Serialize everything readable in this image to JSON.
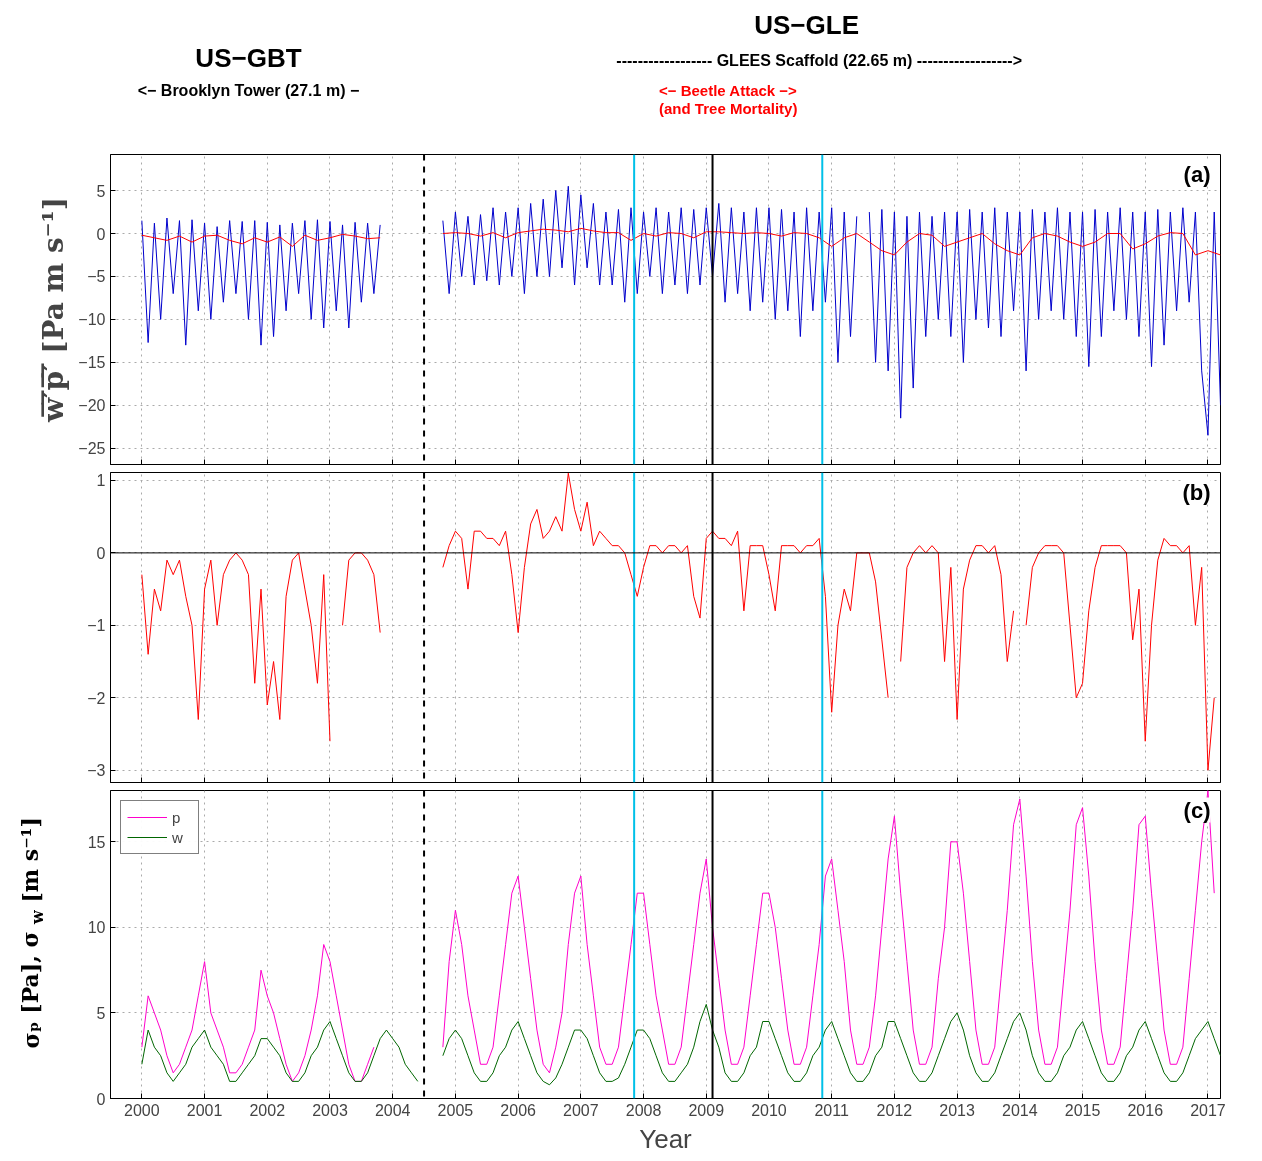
{
  "chart_data": [
    {
      "type": "line",
      "ylabel": "w̅′̅p̅′̅ [Pa m s⁻¹]",
      "xlim": [
        1999.5,
        2017.2
      ],
      "ylim": [
        -26.9,
        9.2
      ],
      "xticks": [
        2000,
        2001,
        2002,
        2003,
        2004,
        2005,
        2006,
        2007,
        2008,
        2009,
        2010,
        2011,
        2012,
        2013,
        2014,
        2015,
        2016,
        2017
      ],
      "yticks": [
        -25,
        -20,
        -15,
        -10,
        -5,
        0,
        5
      ],
      "tick_labels": "y",
      "grid": true,
      "marker": "none",
      "annotations": [
        "US−GBT",
        "<− Brooklyn Tower (27.1 m) −",
        "US−GLE",
        "------------------ GLEES Scaffold (22.65 m) ------------------>",
        "<− Beetle Attack −>",
        "(and Tree Mortality)",
        "(a)"
      ],
      "ref_lines": [
        {
          "axis": "x",
          "value": 2004.5,
          "color": "#000000",
          "line_style": "dashed"
        },
        {
          "axis": "x",
          "value": 2007.85,
          "color": "#00c0e8",
          "line_style": "solid"
        },
        {
          "axis": "x",
          "value": 2009.1,
          "color": "#000000",
          "line_style": "solid"
        },
        {
          "axis": "x",
          "value": 2010.85,
          "color": "#00c0e8",
          "line_style": "solid"
        }
      ],
      "series": [
        {
          "color": "#0000cc",
          "x": [
            2000.0,
            2000.1,
            2000.2,
            2000.3,
            2000.4,
            2000.5,
            2000.6,
            2000.7,
            2000.8,
            2000.9,
            2001.0,
            2001.1,
            2001.2,
            2001.3,
            2001.4,
            2001.5,
            2001.6,
            2001.7,
            2001.8,
            2001.9,
            2002.0,
            2002.1,
            2002.2,
            2002.3,
            2002.4,
            2002.5,
            2002.6,
            2002.7,
            2002.8,
            2002.9,
            2003.0,
            2003.1,
            2003.2,
            2003.3,
            2003.4,
            2003.5,
            2003.6,
            2003.7,
            2003.8,
            2003.9,
            2004.0,
            2004.1,
            2004.2,
            2004.3,
            2004.4,
            2004.5,
            2004.6,
            2004.7,
            2004.8,
            2004.9,
            2005.0,
            2005.1,
            2005.2,
            2005.3,
            2005.4,
            2005.5,
            2005.6,
            2005.7,
            2005.8,
            2005.9,
            2006.0,
            2006.1,
            2006.2,
            2006.3,
            2006.4,
            2006.5,
            2006.6,
            2006.7,
            2006.8,
            2006.9,
            2007.0,
            2007.1,
            2007.2,
            2007.3,
            2007.4,
            2007.5,
            2007.6,
            2007.7,
            2007.8,
            2007.9,
            2008.0,
            2008.1,
            2008.2,
            2008.3,
            2008.4,
            2008.5,
            2008.6,
            2008.7,
            2008.8,
            2008.9,
            2009.0,
            2009.1,
            2009.2,
            2009.3,
            2009.4,
            2009.5,
            2009.6,
            2009.7,
            2009.8,
            2009.9,
            2010.0,
            2010.1,
            2010.2,
            2010.3,
            2010.4,
            2010.5,
            2010.6,
            2010.7,
            2010.8,
            2010.9,
            2011.0,
            2011.1,
            2011.2,
            2011.3,
            2011.4,
            2011.5,
            2011.6,
            2011.7,
            2011.8,
            2011.9,
            2012.0,
            2012.1,
            2012.2,
            2012.3,
            2012.4,
            2012.5,
            2012.6,
            2012.7,
            2012.8,
            2012.9,
            2013.0,
            2013.1,
            2013.2,
            2013.3,
            2013.4,
            2013.5,
            2013.6,
            2013.7,
            2013.8,
            2013.9,
            2014.0,
            2014.1,
            2014.2,
            2014.3,
            2014.4,
            2014.5,
            2014.6,
            2014.7,
            2014.8,
            2014.9,
            2015.0,
            2015.1,
            2015.2,
            2015.3,
            2015.4,
            2015.5,
            2015.6,
            2015.7,
            2015.8,
            2015.9,
            2016.0,
            2016.1,
            2016.2,
            2016.3,
            2016.4,
            2016.5,
            2016.6,
            2016.7,
            2016.8,
            2016.9,
            2017.0,
            2017.1,
            2017.2
          ],
          "values": [
            1.5,
            -12.7,
            1.2,
            -10,
            1.8,
            -7,
            1.5,
            -13,
            1.6,
            -9,
            1.2,
            -10,
            0.8,
            -8,
            1.5,
            -7,
            1.4,
            -10,
            1.5,
            -13,
            1.3,
            -12,
            1.0,
            -9,
            1.2,
            -7,
            1.5,
            -10,
            1.6,
            -11,
            1.4,
            -9,
            1.0,
            -11,
            1.3,
            -8,
            1.2,
            -7,
            1.0,
            null,
            null,
            null,
            null,
            null,
            null,
            null,
            null,
            null,
            1.5,
            -7,
            2.5,
            -5,
            2.0,
            -6,
            2.2,
            -5.5,
            3.0,
            -6,
            2.5,
            -5,
            3.0,
            -7,
            3.5,
            -5,
            4.0,
            -5,
            5.0,
            -4,
            5.5,
            -6,
            4.5,
            -4,
            3.5,
            -6,
            2.5,
            -6,
            2.8,
            -8,
            3.0,
            -7,
            2.5,
            -5,
            3.0,
            -7,
            2.5,
            -6,
            3.0,
            -7,
            2.8,
            -6,
            3.0,
            -5,
            3.5,
            -8,
            3.0,
            -7,
            2.5,
            -9,
            3.0,
            -8,
            3.0,
            -10,
            2.8,
            -9,
            2.5,
            -12,
            3.0,
            -9,
            2.5,
            -8,
            3.0,
            -15,
            2.5,
            -12,
            2.0,
            null,
            2.5,
            -15,
            2.8,
            -16,
            2.5,
            -21.5,
            2.0,
            -18,
            2.5,
            -12,
            2.0,
            -10,
            2.5,
            -12,
            2.5,
            -15,
            2.8,
            -10,
            2.5,
            -11,
            3.0,
            -12,
            2.5,
            -9,
            2.5,
            -16,
            2.8,
            -10,
            2.5,
            -9,
            3.0,
            -10,
            2.5,
            -12,
            2.5,
            -15.5,
            2.8,
            -12,
            2.5,
            -9,
            3.0,
            -10,
            2.5,
            -12,
            2.5,
            -15.5,
            2.8,
            -13,
            2.5,
            -9,
            3.0,
            -8,
            2.5,
            -16,
            -23.5,
            2.5,
            -20
          ]
        },
        {
          "color": "#ff0000",
          "x": [
            2000.0,
            2000.2,
            2000.4,
            2000.6,
            2000.8,
            2001.0,
            2001.2,
            2001.4,
            2001.6,
            2001.8,
            2002.0,
            2002.2,
            2002.4,
            2002.6,
            2002.8,
            2003.0,
            2003.2,
            2003.4,
            2003.6,
            2003.8,
            2004.0,
            2004.2,
            2004.4,
            2004.6,
            2004.8,
            2005.0,
            2005.2,
            2005.4,
            2005.6,
            2005.8,
            2006.0,
            2006.2,
            2006.4,
            2006.6,
            2006.8,
            2007.0,
            2007.2,
            2007.4,
            2007.6,
            2007.8,
            2008.0,
            2008.2,
            2008.4,
            2008.6,
            2008.8,
            2009.0,
            2009.2,
            2009.4,
            2009.6,
            2009.8,
            2010.0,
            2010.2,
            2010.4,
            2010.6,
            2010.8,
            2011.0,
            2011.2,
            2011.4,
            2011.6,
            2011.8,
            2012.0,
            2012.2,
            2012.4,
            2012.6,
            2012.8,
            2013.0,
            2013.2,
            2013.4,
            2013.6,
            2013.8,
            2014.0,
            2014.2,
            2014.4,
            2014.6,
            2014.8,
            2015.0,
            2015.2,
            2015.4,
            2015.6,
            2015.8,
            2016.0,
            2016.2,
            2016.4,
            2016.6,
            2016.8,
            2017.0,
            2017.2
          ],
          "values": [
            -0.2,
            -0.5,
            -0.8,
            -0.3,
            -1.0,
            -0.3,
            -0.2,
            -0.8,
            -1.2,
            -0.5,
            -1.0,
            -0.4,
            -1.5,
            -0.2,
            -0.8,
            -0.5,
            -0.1,
            -0.3,
            -0.6,
            -0.5,
            null,
            null,
            null,
            null,
            0.0,
            0.1,
            0.0,
            -0.3,
            0.1,
            -0.5,
            0.1,
            0.3,
            0.5,
            0.4,
            0.2,
            0.6,
            0.3,
            0.1,
            0.1,
            -0.8,
            0.0,
            -0.3,
            0.1,
            0.0,
            -0.5,
            0.2,
            0.2,
            0.1,
            0.0,
            0.1,
            0.0,
            -0.3,
            0.1,
            0.0,
            -0.5,
            -1.5,
            -0.5,
            0.0,
            -1.0,
            -2.0,
            -2.5,
            -1.0,
            0.0,
            -0.2,
            -1.5,
            -1.0,
            -0.5,
            0.0,
            -1.2,
            -2.0,
            -2.5,
            -0.5,
            0.0,
            -0.3,
            -1.0,
            -1.5,
            -1.0,
            0.0,
            0.0,
            -1.8,
            -1.2,
            -0.3,
            0.1,
            0.0,
            -2.5,
            -2.0,
            -2.5
          ]
        }
      ]
    },
    {
      "type": "line",
      "xlim": [
        1999.5,
        2017.2
      ],
      "ylim": [
        -3.17,
        1.11
      ],
      "xticks": [
        2000,
        2001,
        2002,
        2003,
        2004,
        2005,
        2006,
        2007,
        2008,
        2009,
        2010,
        2011,
        2012,
        2013,
        2014,
        2015,
        2016,
        2017
      ],
      "yticks": [
        -3,
        -2,
        -1,
        0,
        1
      ],
      "tick_labels": "y",
      "grid": true,
      "marker": "none",
      "annotations": [
        "(b)"
      ],
      "ref_lines": [
        {
          "axis": "x",
          "value": 2004.5,
          "color": "#000000",
          "line_style": "dashed"
        },
        {
          "axis": "x",
          "value": 2007.85,
          "color": "#00c0e8",
          "line_style": "solid"
        },
        {
          "axis": "x",
          "value": 2009.1,
          "color": "#000000",
          "line_style": "solid"
        },
        {
          "axis": "x",
          "value": 2010.85,
          "color": "#00c0e8",
          "line_style": "solid"
        },
        {
          "axis": "y",
          "value": 0,
          "color": "#000000",
          "line_style": "solid"
        }
      ],
      "x": [
        2000.0,
        2000.1,
        2000.2,
        2000.3,
        2000.4,
        2000.5,
        2000.6,
        2000.7,
        2000.8,
        2000.9,
        2001.0,
        2001.1,
        2001.2,
        2001.3,
        2001.4,
        2001.5,
        2001.6,
        2001.7,
        2001.8,
        2001.9,
        2002.0,
        2002.1,
        2002.2,
        2002.3,
        2002.4,
        2002.5,
        2002.6,
        2002.7,
        2002.8,
        2002.9,
        2003.0,
        2003.1,
        2003.2,
        2003.3,
        2003.4,
        2003.5,
        2003.6,
        2003.7,
        2003.8,
        2003.9,
        2004.0,
        2004.1,
        2004.2,
        2004.3,
        2004.4,
        2004.5,
        2004.6,
        2004.7,
        2004.8,
        2004.9,
        2005.0,
        2005.1,
        2005.2,
        2005.3,
        2005.4,
        2005.5,
        2005.6,
        2005.7,
        2005.8,
        2005.9,
        2006.0,
        2006.1,
        2006.2,
        2006.3,
        2006.4,
        2006.5,
        2006.6,
        2006.7,
        2006.8,
        2006.9,
        2007.0,
        2007.1,
        2007.2,
        2007.3,
        2007.4,
        2007.5,
        2007.6,
        2007.7,
        2007.8,
        2007.9,
        2008.0,
        2008.1,
        2008.2,
        2008.3,
        2008.4,
        2008.5,
        2008.6,
        2008.7,
        2008.8,
        2008.9,
        2009.0,
        2009.1,
        2009.2,
        2009.3,
        2009.4,
        2009.5,
        2009.6,
        2009.7,
        2009.8,
        2009.9,
        2010.0,
        2010.1,
        2010.2,
        2010.3,
        2010.4,
        2010.5,
        2010.6,
        2010.7,
        2010.8,
        2010.9,
        2011.0,
        2011.1,
        2011.2,
        2011.3,
        2011.4,
        2011.5,
        2011.6,
        2011.7,
        2011.8,
        2011.9,
        2012.0,
        2012.1,
        2012.2,
        2012.3,
        2012.4,
        2012.5,
        2012.6,
        2012.7,
        2012.8,
        2012.9,
        2013.0,
        2013.1,
        2013.2,
        2013.3,
        2013.4,
        2013.5,
        2013.6,
        2013.7,
        2013.8,
        2013.9,
        2014.0,
        2014.1,
        2014.2,
        2014.3,
        2014.4,
        2014.5,
        2014.6,
        2014.7,
        2014.8,
        2014.9,
        2015.0,
        2015.1,
        2015.2,
        2015.3,
        2015.4,
        2015.5,
        2015.6,
        2015.7,
        2015.8,
        2015.9,
        2016.0,
        2016.1,
        2016.2,
        2016.3,
        2016.4,
        2016.5,
        2016.6,
        2016.7,
        2016.8,
        2016.9,
        2017.0,
        2017.1
      ],
      "series": [
        {
          "color": "#ff0000",
          "values": [
            -0.3,
            -1.4,
            -0.5,
            -0.8,
            -0.1,
            -0.3,
            -0.1,
            -0.6,
            -1.0,
            -2.3,
            -0.5,
            -0.1,
            -1.0,
            -0.3,
            -0.1,
            0.0,
            -0.1,
            -0.3,
            -1.8,
            -0.5,
            -2.1,
            -1.5,
            -2.3,
            -0.6,
            -0.1,
            0.0,
            -0.5,
            -1.0,
            -1.8,
            -0.3,
            -2.6,
            null,
            -1.0,
            -0.1,
            0.0,
            0.0,
            -0.1,
            -0.3,
            -1.1,
            null,
            null,
            null,
            null,
            null,
            null,
            null,
            null,
            null,
            -0.2,
            0.1,
            0.3,
            0.2,
            -0.5,
            0.3,
            0.3,
            0.2,
            0.2,
            0.1,
            0.3,
            -0.3,
            -1.1,
            -0.2,
            0.4,
            0.6,
            0.2,
            0.3,
            0.5,
            0.3,
            1.1,
            0.6,
            0.3,
            0.7,
            0.1,
            0.3,
            0.2,
            0.1,
            0.1,
            0.0,
            -0.3,
            -0.6,
            -0.2,
            0.1,
            0.1,
            0.0,
            0.1,
            0.1,
            0.0,
            0.1,
            -0.6,
            -0.9,
            0.2,
            0.3,
            0.2,
            0.2,
            0.1,
            0.3,
            -0.8,
            0.1,
            0.1,
            0.1,
            -0.3,
            -0.8,
            0.1,
            0.1,
            0.1,
            0.0,
            0.1,
            0.1,
            0.2,
            -0.6,
            -2.2,
            -1.0,
            -0.5,
            -0.8,
            0.0,
            0.0,
            0.0,
            -0.4,
            -1.2,
            -2.0,
            null,
            -1.5,
            -0.2,
            0.0,
            0.1,
            0.0,
            0.1,
            0.0,
            -1.5,
            -0.2,
            -2.3,
            -0.5,
            -0.1,
            0.1,
            0.1,
            0.0,
            0.1,
            -0.3,
            -1.5,
            -0.8,
            null,
            -1.0,
            -0.2,
            0.0,
            0.1,
            0.1,
            0.1,
            0.0,
            -1.0,
            -2.0,
            -1.8,
            -0.8,
            -0.2,
            0.1,
            0.1,
            0.1,
            0.1,
            0.0,
            -1.2,
            -0.5,
            -2.6,
            -1.0,
            -0.1,
            0.2,
            0.1,
            0.1,
            0.0,
            0.1,
            -1.0,
            -0.2,
            -3.0,
            -2.0
          ]
        }
      ]
    },
    {
      "type": "line",
      "xlabel": "Year",
      "ylabel": "σₚ [Pa], σ$_{w}$ [m s⁻¹]",
      "xlim": [
        1999.5,
        2017.2
      ],
      "ylim": [
        0,
        18
      ],
      "xticks": [
        2000,
        2001,
        2002,
        2003,
        2004,
        2005,
        2006,
        2007,
        2008,
        2009,
        2010,
        2011,
        2012,
        2013,
        2014,
        2015,
        2016,
        2017
      ],
      "yticks": [
        0,
        5,
        10,
        15
      ],
      "grid": true,
      "marker": "none",
      "legend": "top left",
      "annotations": [
        "(c)"
      ],
      "ref_lines": [
        {
          "axis": "x",
          "value": 2004.5,
          "color": "#000000",
          "line_style": "dashed"
        },
        {
          "axis": "x",
          "value": 2007.85,
          "color": "#00c0e8",
          "line_style": "solid"
        },
        {
          "axis": "x",
          "value": 2009.1,
          "color": "#000000",
          "line_style": "solid"
        },
        {
          "axis": "x",
          "value": 2010.85,
          "color": "#00c0e8",
          "line_style": "solid"
        }
      ],
      "x": [
        2000.0,
        2000.1,
        2000.2,
        2000.3,
        2000.4,
        2000.5,
        2000.6,
        2000.7,
        2000.8,
        2000.9,
        2001.0,
        2001.1,
        2001.2,
        2001.3,
        2001.4,
        2001.5,
        2001.6,
        2001.7,
        2001.8,
        2001.9,
        2002.0,
        2002.1,
        2002.2,
        2002.3,
        2002.4,
        2002.5,
        2002.6,
        2002.7,
        2002.8,
        2002.9,
        2003.0,
        2003.1,
        2003.2,
        2003.3,
        2003.4,
        2003.5,
        2003.6,
        2003.7,
        2003.8,
        2003.9,
        2004.0,
        2004.1,
        2004.2,
        2004.3,
        2004.4,
        2004.5,
        2004.6,
        2004.7,
        2004.8,
        2004.9,
        2005.0,
        2005.1,
        2005.2,
        2005.3,
        2005.4,
        2005.5,
        2005.6,
        2005.7,
        2005.8,
        2005.9,
        2006.0,
        2006.1,
        2006.2,
        2006.3,
        2006.4,
        2006.5,
        2006.6,
        2006.7,
        2006.8,
        2006.9,
        2007.0,
        2007.1,
        2007.2,
        2007.3,
        2007.4,
        2007.5,
        2007.6,
        2007.7,
        2007.8,
        2007.9,
        2008.0,
        2008.1,
        2008.2,
        2008.3,
        2008.4,
        2008.5,
        2008.6,
        2008.7,
        2008.8,
        2008.9,
        2009.0,
        2009.1,
        2009.2,
        2009.3,
        2009.4,
        2009.5,
        2009.6,
        2009.7,
        2009.8,
        2009.9,
        2010.0,
        2010.1,
        2010.2,
        2010.3,
        2010.4,
        2010.5,
        2010.6,
        2010.7,
        2010.8,
        2010.9,
        2011.0,
        2011.1,
        2011.2,
        2011.3,
        2011.4,
        2011.5,
        2011.6,
        2011.7,
        2011.8,
        2011.9,
        2012.0,
        2012.1,
        2012.2,
        2012.3,
        2012.4,
        2012.5,
        2012.6,
        2012.7,
        2012.8,
        2012.9,
        2013.0,
        2013.1,
        2013.2,
        2013.3,
        2013.4,
        2013.5,
        2013.6,
        2013.7,
        2013.8,
        2013.9,
        2014.0,
        2014.1,
        2014.2,
        2014.3,
        2014.4,
        2014.5,
        2014.6,
        2014.7,
        2014.8,
        2014.9,
        2015.0,
        2015.1,
        2015.2,
        2015.3,
        2015.4,
        2015.5,
        2015.6,
        2015.7,
        2015.8,
        2015.9,
        2016.0,
        2016.1,
        2016.2,
        2016.3,
        2016.4,
        2016.5,
        2016.6,
        2016.7,
        2016.8,
        2016.9,
        2017.0,
        2017.1,
        2017.2
      ],
      "series": [
        {
          "name": "p",
          "color": "#ff00cc",
          "values": [
            3,
            6,
            5,
            4,
            2.5,
            1.5,
            2,
            3,
            4,
            6,
            8,
            5,
            4,
            3,
            1.5,
            1.5,
            2,
            3,
            4,
            7.5,
            6,
            5,
            3.5,
            2,
            1,
            1.5,
            2.5,
            4,
            6,
            9,
            8,
            6,
            4,
            2,
            1,
            1,
            2,
            3,
            null,
            null,
            null,
            null,
            null,
            null,
            null,
            null,
            null,
            null,
            3,
            8,
            11,
            9,
            6,
            4,
            2,
            2,
            3,
            6,
            9,
            12,
            13,
            10,
            7,
            4,
            2,
            1.5,
            3,
            5,
            9,
            12,
            13,
            9,
            6,
            3,
            2,
            2,
            3,
            6,
            9,
            12,
            12,
            9,
            6,
            4,
            2,
            2,
            3,
            6,
            9,
            12,
            14,
            10,
            7,
            4,
            2,
            2,
            3,
            6,
            9,
            12,
            12,
            10,
            7,
            4,
            2,
            2,
            3,
            6,
            9,
            13,
            14,
            11,
            8,
            4,
            2,
            2,
            3,
            6,
            10,
            14,
            16.5,
            12,
            8,
            4,
            2,
            2,
            3,
            7,
            10,
            15,
            15,
            12,
            8,
            4,
            2,
            2,
            3,
            7,
            11,
            16,
            17.5,
            13,
            8,
            4,
            2,
            2,
            3,
            7,
            11,
            16,
            17,
            13,
            8,
            4,
            2,
            2,
            3,
            7,
            11,
            16,
            16.5,
            12,
            8,
            4,
            2,
            2,
            3,
            7,
            11,
            15,
            18,
            12,
            null
          ]
        },
        {
          "name": "w",
          "color": "#006600",
          "values": [
            2,
            4,
            3,
            2.5,
            1.5,
            1,
            1.5,
            2,
            3,
            3.5,
            4,
            3,
            2.5,
            2,
            1,
            1,
            1.5,
            2,
            2.5,
            3.5,
            3.5,
            3,
            2.5,
            1.5,
            1,
            1,
            1.5,
            2.5,
            3,
            4,
            4.5,
            3.5,
            2.5,
            1.5,
            1,
            1,
            1.5,
            2.5,
            3.5,
            4,
            3.5,
            3,
            2,
            1.5,
            1,
            null,
            null,
            null,
            2.5,
            3.5,
            4,
            3.5,
            2.5,
            1.5,
            1,
            1,
            1.5,
            2.5,
            3,
            4,
            4.5,
            3.5,
            2.5,
            1.5,
            1,
            0.8,
            1.2,
            2,
            3,
            4,
            4,
            3.5,
            2.5,
            1.5,
            1,
            1,
            1.2,
            2,
            3,
            4,
            4,
            3.5,
            2.5,
            1.5,
            1,
            1,
            1.5,
            2,
            3,
            4.5,
            5.5,
            4,
            3,
            1.5,
            1,
            1,
            1.5,
            2.5,
            3,
            4.5,
            4.5,
            3.5,
            2.5,
            1.5,
            1,
            1,
            1.5,
            2.5,
            3,
            4,
            4.5,
            3.5,
            2.5,
            1.5,
            1,
            1,
            1.5,
            2.5,
            3,
            4.5,
            4.5,
            3.5,
            2.5,
            1.5,
            1,
            1,
            1.5,
            2.5,
            3.5,
            4.5,
            5,
            4,
            2.5,
            1.5,
            1,
            1,
            1.5,
            2.5,
            3.5,
            4.5,
            5,
            4,
            2.5,
            1.5,
            1,
            1,
            1.5,
            2.5,
            3,
            4,
            4.5,
            3.5,
            2.5,
            1.5,
            1,
            1,
            1.5,
            2.5,
            3,
            4,
            4.5,
            3.5,
            2.5,
            1.5,
            1,
            1,
            1.5,
            2.5,
            3.5,
            4,
            4.5,
            3.5,
            2.5
          ]
        }
      ]
    }
  ]
}
